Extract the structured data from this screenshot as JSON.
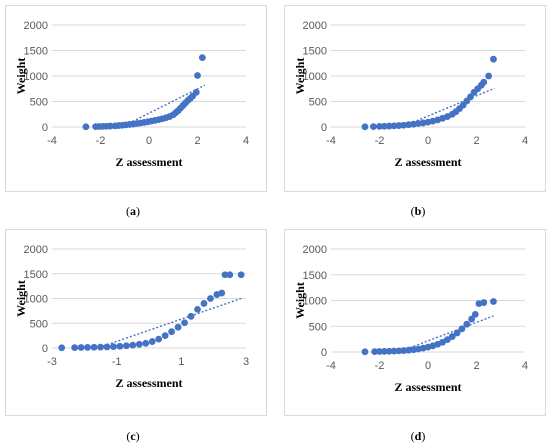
{
  "figure": {
    "captions": [
      {
        "open": "(",
        "letter": "a",
        "close": ")"
      },
      {
        "open": "(",
        "letter": "b",
        "close": ")"
      },
      {
        "open": "(",
        "letter": "c",
        "close": ")"
      },
      {
        "open": "(",
        "letter": "d",
        "close": ")"
      }
    ],
    "marker_color": "#4472c4",
    "trend_color": "#4472c4",
    "grid_color": "#d9d9d9"
  },
  "chart_data": [
    {
      "type": "scatter",
      "panel": "a",
      "xlabel": "Z assessment",
      "ylabel": "Weight",
      "xlim": [
        -4,
        4
      ],
      "ylim": [
        0,
        2000
      ],
      "xticks": [
        -4,
        -2,
        0,
        2,
        4
      ],
      "yticks": [
        0,
        500,
        1000,
        1500,
        2000
      ],
      "grid": "horizontal",
      "points": [
        [
          -2.6,
          5
        ],
        [
          -2.2,
          8
        ],
        [
          -2.05,
          10
        ],
        [
          -1.9,
          12
        ],
        [
          -1.75,
          15
        ],
        [
          -1.6,
          18
        ],
        [
          -1.4,
          22
        ],
        [
          -1.25,
          28
        ],
        [
          -1.1,
          35
        ],
        [
          -0.95,
          42
        ],
        [
          -0.8,
          50
        ],
        [
          -0.65,
          58
        ],
        [
          -0.5,
          68
        ],
        [
          -0.35,
          78
        ],
        [
          -0.2,
          90
        ],
        [
          -0.05,
          102
        ],
        [
          0.1,
          115
        ],
        [
          0.25,
          130
        ],
        [
          0.4,
          145
        ],
        [
          0.55,
          162
        ],
        [
          0.7,
          182
        ],
        [
          0.85,
          205
        ],
        [
          1.0,
          240
        ],
        [
          1.1,
          280
        ],
        [
          1.2,
          320
        ],
        [
          1.3,
          370
        ],
        [
          1.4,
          420
        ],
        [
          1.5,
          470
        ],
        [
          1.6,
          520
        ],
        [
          1.7,
          560
        ],
        [
          1.8,
          605
        ],
        [
          1.95,
          680
        ],
        [
          2.0,
          1010
        ],
        [
          2.2,
          1360
        ]
      ],
      "trendline": [
        [
          -2.6,
          -350
        ],
        [
          2.3,
          820
        ]
      ]
    },
    {
      "type": "scatter",
      "panel": "b",
      "xlabel": "Z assessment",
      "ylabel": "Weight",
      "xlim": [
        -4,
        4
      ],
      "ylim": [
        0,
        2000
      ],
      "xticks": [
        -4,
        -2,
        0,
        2,
        4
      ],
      "yticks": [
        0,
        500,
        1000,
        1500,
        2000
      ],
      "grid": "horizontal",
      "points": [
        [
          -2.6,
          5
        ],
        [
          -2.25,
          8
        ],
        [
          -2.0,
          12
        ],
        [
          -1.8,
          15
        ],
        [
          -1.6,
          18
        ],
        [
          -1.4,
          22
        ],
        [
          -1.2,
          28
        ],
        [
          -1.0,
          35
        ],
        [
          -0.8,
          45
        ],
        [
          -0.6,
          55
        ],
        [
          -0.4,
          68
        ],
        [
          -0.2,
          80
        ],
        [
          0.0,
          95
        ],
        [
          0.2,
          115
        ],
        [
          0.4,
          140
        ],
        [
          0.6,
          170
        ],
        [
          0.8,
          205
        ],
        [
          1.0,
          250
        ],
        [
          1.15,
          300
        ],
        [
          1.3,
          360
        ],
        [
          1.45,
          430
        ],
        [
          1.6,
          510
        ],
        [
          1.75,
          590
        ],
        [
          1.9,
          680
        ],
        [
          2.05,
          750
        ],
        [
          2.2,
          820
        ],
        [
          2.3,
          880
        ],
        [
          2.5,
          1000
        ],
        [
          2.7,
          1330
        ]
      ],
      "trendline": [
        [
          -2.6,
          -300
        ],
        [
          2.75,
          760
        ]
      ]
    },
    {
      "type": "scatter",
      "panel": "c",
      "xlabel": "Z assessment",
      "ylabel": "Weight",
      "xlim": [
        -3,
        3
      ],
      "ylim": [
        0,
        2000
      ],
      "xticks": [
        -3,
        -1,
        1,
        3
      ],
      "yticks": [
        0,
        500,
        1000,
        1500,
        2000
      ],
      "grid": "horizontal",
      "points": [
        [
          -2.7,
          5
        ],
        [
          -2.3,
          8
        ],
        [
          -2.1,
          10
        ],
        [
          -1.9,
          12
        ],
        [
          -1.7,
          15
        ],
        [
          -1.5,
          18
        ],
        [
          -1.3,
          22
        ],
        [
          -1.1,
          28
        ],
        [
          -0.9,
          35
        ],
        [
          -0.7,
          45
        ],
        [
          -0.5,
          58
        ],
        [
          -0.3,
          75
        ],
        [
          -0.1,
          95
        ],
        [
          0.1,
          130
        ],
        [
          0.3,
          180
        ],
        [
          0.5,
          250
        ],
        [
          0.7,
          330
        ],
        [
          0.9,
          420
        ],
        [
          1.1,
          510
        ],
        [
          1.3,
          640
        ],
        [
          1.5,
          780
        ],
        [
          1.7,
          900
        ],
        [
          1.9,
          1000
        ],
        [
          2.1,
          1080
        ],
        [
          2.25,
          1110
        ],
        [
          2.35,
          1480
        ],
        [
          2.5,
          1480
        ],
        [
          2.85,
          1480
        ]
      ],
      "trendline": [
        [
          -2.7,
          -250
        ],
        [
          2.85,
          1000
        ]
      ]
    },
    {
      "type": "scatter",
      "panel": "d",
      "xlabel": "Z assessment",
      "ylabel": "Weight",
      "xlim": [
        -4,
        4
      ],
      "ylim": [
        0,
        2000
      ],
      "xticks": [
        -4,
        -2,
        0,
        2,
        4
      ],
      "yticks": [
        0,
        500,
        1000,
        1500,
        2000
      ],
      "grid": "horizontal",
      "points": [
        [
          -2.6,
          5
        ],
        [
          -2.2,
          8
        ],
        [
          -2.0,
          10
        ],
        [
          -1.8,
          12
        ],
        [
          -1.6,
          15
        ],
        [
          -1.4,
          18
        ],
        [
          -1.2,
          22
        ],
        [
          -1.0,
          28
        ],
        [
          -0.8,
          35
        ],
        [
          -0.6,
          45
        ],
        [
          -0.4,
          58
        ],
        [
          -0.2,
          75
        ],
        [
          0.0,
          95
        ],
        [
          0.2,
          120
        ],
        [
          0.4,
          150
        ],
        [
          0.6,
          190
        ],
        [
          0.8,
          240
        ],
        [
          1.0,
          300
        ],
        [
          1.2,
          370
        ],
        [
          1.4,
          450
        ],
        [
          1.6,
          540
        ],
        [
          1.8,
          640
        ],
        [
          1.95,
          730
        ],
        [
          2.1,
          940
        ],
        [
          2.3,
          960
        ],
        [
          2.7,
          980
        ]
      ],
      "trendline": [
        [
          -2.6,
          -250
        ],
        [
          2.7,
          700
        ]
      ]
    }
  ]
}
